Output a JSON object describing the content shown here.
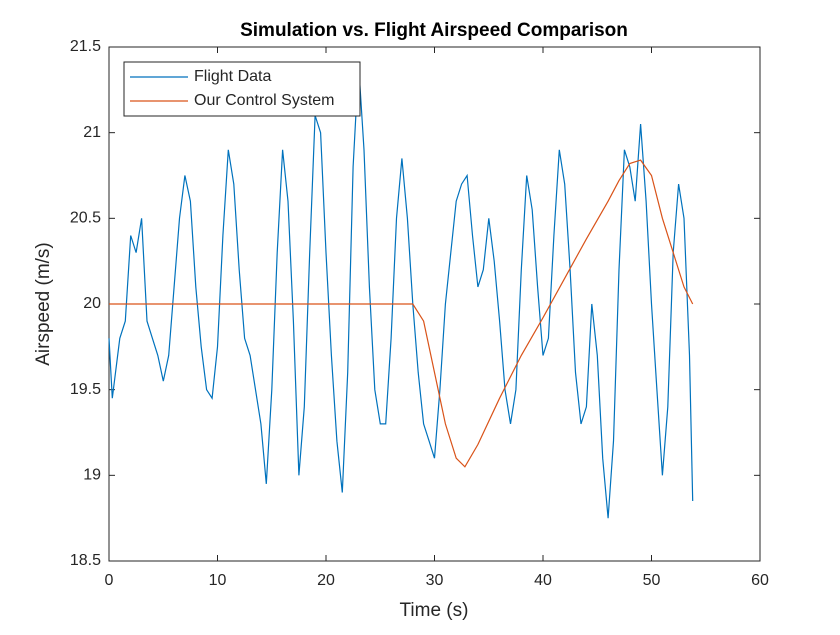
{
  "chart_data": {
    "type": "line",
    "title": "Simulation vs. Flight Airspeed Comparison",
    "x_label": "Time (s)",
    "y_label": "Airspeed (m/s)",
    "xlim": [
      0,
      60
    ],
    "xticks": [
      0,
      10,
      20,
      30,
      40,
      50,
      60
    ],
    "ylim": [
      18.5,
      21.5
    ],
    "yticks": [
      18.5,
      19,
      19.5,
      20,
      20.5,
      21,
      21.5
    ],
    "legend": "upper left",
    "series": [
      {
        "name": "Flight Data",
        "color": "#0072BD",
        "x": [
          0,
          0.3,
          1,
          1.5,
          2,
          2.5,
          3,
          3.5,
          4,
          4.5,
          5,
          5.5,
          6,
          6.5,
          7,
          7.5,
          8,
          8.5,
          9,
          9.5,
          10,
          10.5,
          11,
          11.5,
          12,
          12.5,
          13,
          14,
          14.5,
          15,
          15.5,
          16,
          16.5,
          17,
          17.5,
          18,
          18.5,
          19,
          19.5,
          20,
          20.5,
          21,
          21.5,
          22,
          22.5,
          23,
          23.5,
          24,
          24.5,
          25,
          25.5,
          26,
          26.5,
          27,
          27.5,
          28,
          28.5,
          29,
          29.5,
          30,
          30.5,
          31,
          31.5,
          32,
          32.5,
          33,
          33.5,
          34,
          34.5,
          35,
          35.5,
          36,
          36.5,
          37,
          37.5,
          38,
          38.5,
          39,
          39.5,
          40,
          40.5,
          41,
          41.5,
          42,
          42.5,
          43,
          43.5,
          44,
          44.5,
          45,
          45.5,
          46,
          46.5,
          47,
          47.5,
          48,
          48.5,
          49,
          49.5,
          50,
          50.5,
          51,
          51.5,
          52,
          52.5,
          53,
          53.5,
          53.8
        ],
        "values": [
          19.8,
          19.45,
          19.8,
          19.9,
          20.4,
          20.3,
          20.5,
          19.9,
          19.8,
          19.7,
          19.55,
          19.7,
          20.1,
          20.5,
          20.75,
          20.6,
          20.1,
          19.75,
          19.5,
          19.45,
          19.75,
          20.4,
          20.9,
          20.7,
          20.2,
          19.8,
          19.7,
          19.3,
          18.95,
          19.5,
          20.3,
          20.9,
          20.6,
          19.9,
          19.0,
          19.4,
          20.3,
          21.1,
          21.0,
          20.3,
          19.7,
          19.2,
          18.9,
          19.6,
          20.8,
          21.4,
          20.9,
          20.1,
          19.5,
          19.3,
          19.3,
          19.8,
          20.5,
          20.85,
          20.5,
          20.0,
          19.6,
          19.3,
          19.2,
          19.1,
          19.5,
          20.0,
          20.3,
          20.6,
          20.7,
          20.75,
          20.4,
          20.1,
          20.2,
          20.5,
          20.25,
          19.9,
          19.5,
          19.3,
          19.5,
          20.2,
          20.75,
          20.55,
          20.1,
          19.7,
          19.8,
          20.4,
          20.9,
          20.7,
          20.2,
          19.6,
          19.3,
          19.4,
          20.0,
          19.7,
          19.1,
          18.75,
          19.2,
          20.2,
          20.9,
          20.8,
          20.6,
          21.05,
          20.6,
          20.0,
          19.5,
          19.0,
          19.4,
          20.3,
          20.7,
          20.5,
          19.7,
          18.85
        ]
      },
      {
        "name": "Our Control System",
        "color": "#D95319",
        "x": [
          0,
          28,
          29,
          30,
          31,
          32,
          32.8,
          34,
          36,
          38,
          40,
          42,
          44,
          46,
          47,
          48,
          49,
          50,
          51,
          52,
          53,
          53.8
        ],
        "values": [
          20,
          20,
          19.9,
          19.6,
          19.3,
          19.1,
          19.05,
          19.18,
          19.45,
          19.7,
          19.92,
          20.15,
          20.38,
          20.6,
          20.72,
          20.82,
          20.84,
          20.75,
          20.5,
          20.3,
          20.1,
          20.0
        ]
      }
    ]
  }
}
